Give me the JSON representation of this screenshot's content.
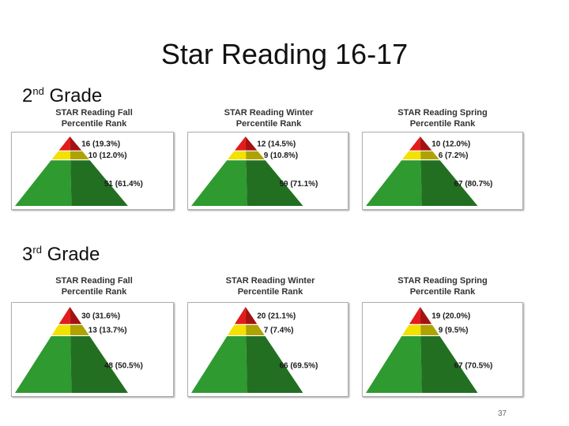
{
  "title": "Star Reading 16-17",
  "grades": [
    {
      "label_main": "2",
      "label_sup": "nd",
      "label_rest": "Grade"
    },
    {
      "label_main": "3",
      "label_sup": "rd",
      "label_rest": "Grade"
    }
  ],
  "colors": {
    "red": "#e31b1b",
    "yellow": "#f2e200",
    "green": "#2f9a2f"
  },
  "slide_number": "37",
  "chart_data": [
    {
      "type": "pyramid",
      "grade": "2nd Grade",
      "title_lines": [
        "STAR Reading Fall",
        "Percentile Rank"
      ],
      "tiers": [
        {
          "count": 16,
          "percent": "19.3%",
          "label": "16 (19.3%)"
        },
        {
          "count": 10,
          "percent": "12.0%",
          "label": "10 (12.0%)"
        },
        {
          "count": 51,
          "percent": "61.4%",
          "label": "51 (61.4%)"
        }
      ]
    },
    {
      "type": "pyramid",
      "grade": "2nd Grade",
      "title_lines": [
        "STAR Reading Winter",
        "Percentile Rank"
      ],
      "tiers": [
        {
          "count": 12,
          "percent": "14.5%",
          "label": "12 (14.5%)"
        },
        {
          "count": 9,
          "percent": "10.8%",
          "label": "9 (10.8%)"
        },
        {
          "count": 59,
          "percent": "71.1%",
          "label": "59 (71.1%)"
        }
      ]
    },
    {
      "type": "pyramid",
      "grade": "2nd Grade",
      "title_lines": [
        "STAR Reading Spring",
        "Percentile Rank"
      ],
      "tiers": [
        {
          "count": 10,
          "percent": "12.0%",
          "label": "10 (12.0%)"
        },
        {
          "count": 6,
          "percent": "7.2%",
          "label": "6 (7.2%)"
        },
        {
          "count": 67,
          "percent": "80.7%",
          "label": "67 (80.7%)"
        }
      ]
    },
    {
      "type": "pyramid",
      "grade": "3rd Grade",
      "title_lines": [
        "STAR Reading Fall",
        "Percentile Rank"
      ],
      "tiers": [
        {
          "count": 30,
          "percent": "31.6%",
          "label": "30 (31.6%)"
        },
        {
          "count": 13,
          "percent": "13.7%",
          "label": "13 (13.7%)"
        },
        {
          "count": 48,
          "percent": "50.5%",
          "label": "48 (50.5%)"
        }
      ]
    },
    {
      "type": "pyramid",
      "grade": "3rd Grade",
      "title_lines": [
        "STAR Reading Winter",
        "Percentile Rank"
      ],
      "tiers": [
        {
          "count": 20,
          "percent": "21.1%",
          "label": "20 (21.1%)"
        },
        {
          "count": 7,
          "percent": "7.4%",
          "label": "7 (7.4%)"
        },
        {
          "count": 66,
          "percent": "69.5%",
          "label": "66 (69.5%)"
        }
      ]
    },
    {
      "type": "pyramid",
      "grade": "3rd Grade",
      "title_lines": [
        "STAR Reading Spring",
        "Percentile Rank"
      ],
      "tiers": [
        {
          "count": 19,
          "percent": "20.0%",
          "label": "19 (20.0%)"
        },
        {
          "count": 9,
          "percent": "9.5%",
          "label": "9 (9.5%)"
        },
        {
          "count": 67,
          "percent": "70.5%",
          "label": "67 (70.5%)"
        }
      ]
    }
  ]
}
